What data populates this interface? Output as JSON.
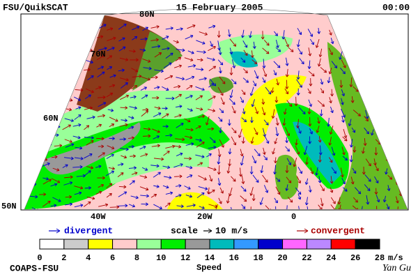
{
  "header": {
    "source": "FSU/QuikSCAT",
    "date": "15 February 2005",
    "time": "00:00"
  },
  "map": {
    "lat_labels": [
      "80N",
      "70N",
      "60N",
      "50N"
    ],
    "lon_labels": [
      "40W",
      "20W",
      "0"
    ]
  },
  "arrow_legend": {
    "divergent": "divergent",
    "scale": "scale",
    "scale_value": "10 m/s",
    "convergent": "convergent"
  },
  "legend": {
    "colors": [
      "#ffffff",
      "#cccccc",
      "#ffff00",
      "#ffcccc",
      "#99ff99",
      "#00ee00",
      "#999999",
      "#00bbbb",
      "#3399ff",
      "#0000cc",
      "#ff66ff",
      "#bb88ff",
      "#ff0000",
      "#cc3300",
      "#000000"
    ],
    "ticks": [
      0,
      2,
      4,
      6,
      8,
      10,
      12,
      14,
      16,
      18,
      20,
      22,
      24,
      26,
      28
    ],
    "unit": "m/s",
    "title": "Speed"
  },
  "footer": {
    "institution": "COAPS-FSU",
    "author": "Yan Gu"
  }
}
